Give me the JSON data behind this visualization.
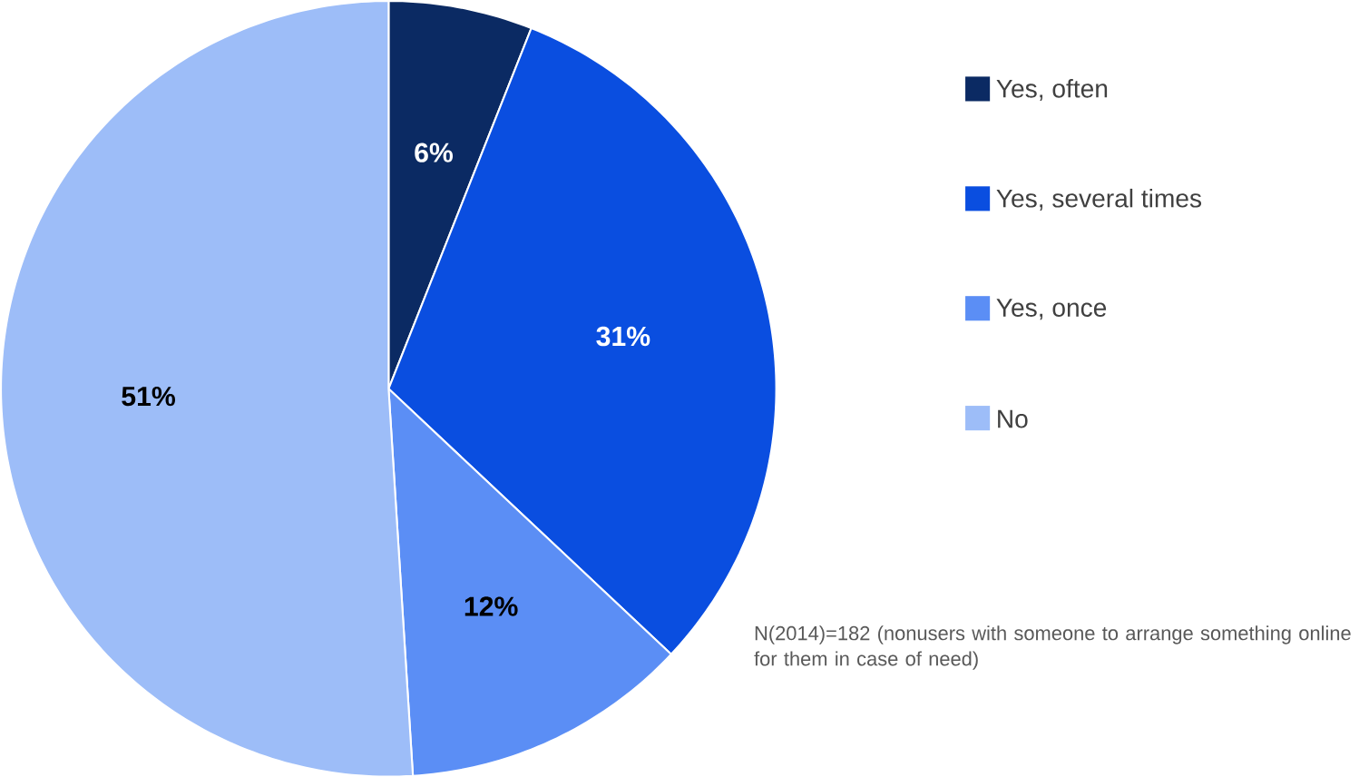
{
  "chart_data": {
    "type": "pie",
    "categories": [
      "Yes, often",
      "Yes, several times",
      "Yes, once",
      "No"
    ],
    "values": [
      6,
      31,
      12,
      51
    ],
    "colors": [
      "#0b2a63",
      "#0a4ee0",
      "#5b8ef5",
      "#9dbdf8"
    ],
    "value_labels": [
      "6%",
      "31%",
      "12%",
      "51%"
    ],
    "legend": "right",
    "annotations": [
      "N(2014)=182 (nonusers with someone to arrange something online for them in case of need)"
    ]
  }
}
